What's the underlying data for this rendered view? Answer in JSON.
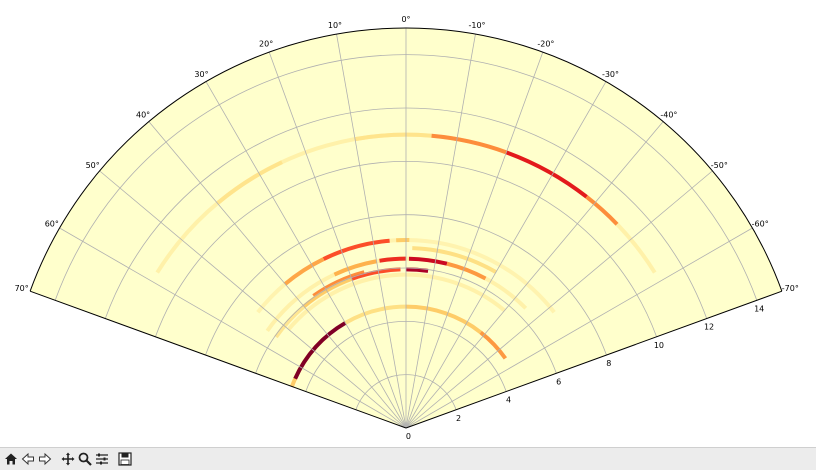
{
  "chart_data": {
    "type": "heatmap",
    "projection": "polar",
    "theta_range_deg": [
      -70,
      70
    ],
    "theta_zero_location": "top",
    "theta_direction": "clockwise",
    "r_range": [
      0,
      15
    ],
    "theta_tick_labels": [
      "70°",
      "60°",
      "50°",
      "40°",
      "30°",
      "20°",
      "10°",
      "0°",
      "-10°",
      "-20°",
      "-30°",
      "-40°",
      "-50°",
      "-60°",
      "-70°"
    ],
    "theta_ticks_deg": [
      70,
      60,
      50,
      40,
      30,
      20,
      10,
      0,
      -10,
      -20,
      -30,
      -40,
      -50,
      -60,
      -70
    ],
    "r_tick_labels": [
      "0",
      "2",
      "4",
      "6",
      "8",
      "10",
      "12",
      "14"
    ],
    "r_ticks": [
      0,
      2,
      4,
      6,
      8,
      10,
      12,
      14
    ],
    "grid": true,
    "colormap": "YlOrRd",
    "background_color": "#ffffcc",
    "arcs": [
      {
        "r": 11.0,
        "theta_start": 58,
        "theta_end": -58,
        "intensity": 0.12
      },
      {
        "r": 11.0,
        "theta_start": 10,
        "theta_end": -5,
        "intensity": 0.22
      },
      {
        "r": 11.0,
        "theta_start": -20,
        "theta_end": -38,
        "intensity": 0.85
      },
      {
        "r": 11.0,
        "theta_start": -5,
        "theta_end": -20,
        "intensity": 0.6
      },
      {
        "r": 11.0,
        "theta_start": -38,
        "theta_end": -46,
        "intensity": 0.6
      },
      {
        "r": 11.0,
        "theta_start": 40,
        "theta_end": 25,
        "intensity": 0.22
      },
      {
        "r": 7.05,
        "theta_start": 52,
        "theta_end": -52,
        "intensity": 0.1
      },
      {
        "r": 7.05,
        "theta_start": 26,
        "theta_end": 5,
        "intensity": 0.72
      },
      {
        "r": 7.05,
        "theta_start": 40,
        "theta_end": 26,
        "intensity": 0.5
      },
      {
        "r": 7.05,
        "theta_start": 3,
        "theta_end": -1,
        "intensity": 0.35
      },
      {
        "r": 6.75,
        "theta_start": -2,
        "theta_end": -30,
        "intensity": 0.25
      },
      {
        "r": 6.35,
        "theta_start": 55,
        "theta_end": -45,
        "intensity": 0.12
      },
      {
        "r": 6.35,
        "theta_start": 25,
        "theta_end": 10,
        "intensity": 0.45
      },
      {
        "r": 6.35,
        "theta_start": 9,
        "theta_end": 0,
        "intensity": 0.8
      },
      {
        "r": 6.35,
        "theta_start": -1,
        "theta_end": -14,
        "intensity": 0.9
      },
      {
        "r": 6.35,
        "theta_start": -14,
        "theta_end": -28,
        "intensity": 0.55
      },
      {
        "r": 6.05,
        "theta_start": 35,
        "theta_end": 15,
        "intensity": 0.6
      },
      {
        "r": 5.95,
        "theta_start": 55,
        "theta_end": 40,
        "intensity": 0.2
      },
      {
        "r": 5.95,
        "theta_start": 40,
        "theta_end": 20,
        "intensity": 0.35
      },
      {
        "r": 5.95,
        "theta_start": 20,
        "theta_end": 2,
        "intensity": 0.72
      },
      {
        "r": 5.95,
        "theta_start": 0,
        "theta_end": -8,
        "intensity": 0.95
      },
      {
        "r": 5.75,
        "theta_start": 50,
        "theta_end": -40,
        "intensity": 0.12
      },
      {
        "r": 4.55,
        "theta_start": 70,
        "theta_end": 42,
        "intensity": 0.35
      },
      {
        "r": 4.55,
        "theta_start": 66,
        "theta_end": 30,
        "intensity": 1.0
      },
      {
        "r": 4.55,
        "theta_start": 30,
        "theta_end": 0,
        "intensity": 0.25
      },
      {
        "r": 4.55,
        "theta_start": 0,
        "theta_end": -38,
        "intensity": 0.35
      },
      {
        "r": 4.55,
        "theta_start": -38,
        "theta_end": -55,
        "intensity": 0.55
      }
    ]
  },
  "toolbar": {
    "buttons": [
      {
        "name": "home-icon",
        "glyph": "home"
      },
      {
        "name": "back-icon",
        "glyph": "back"
      },
      {
        "name": "forward-icon",
        "glyph": "forward"
      },
      {
        "name": "pan-icon",
        "glyph": "pan"
      },
      {
        "name": "zoom-icon",
        "glyph": "zoom"
      },
      {
        "name": "configure-subplots-icon",
        "glyph": "config"
      },
      {
        "name": "save-icon",
        "glyph": "save"
      }
    ]
  }
}
